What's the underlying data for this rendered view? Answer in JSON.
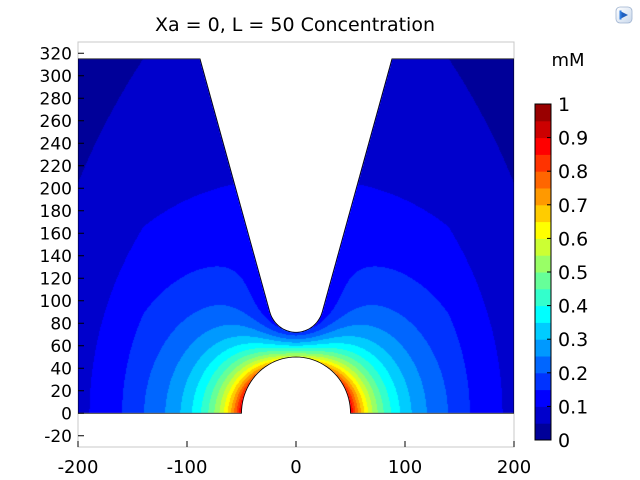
{
  "chart_data": {
    "type": "heatmap",
    "title": "Xa = 0, L = 50 Concentration",
    "xlim": [
      -200,
      200
    ],
    "ylim": [
      -30,
      330
    ],
    "xticks": [
      "-200",
      "-100",
      "0",
      "100",
      "200"
    ],
    "yticks": [
      "320",
      "300",
      "280",
      "260",
      "240",
      "220",
      "200",
      "180",
      "160",
      "140",
      "120",
      "100",
      "80",
      "60",
      "40",
      "20",
      "0",
      "-20"
    ],
    "xtick_values": [
      -200,
      -100,
      0,
      100,
      200
    ],
    "ytick_values": [
      320,
      300,
      280,
      260,
      240,
      220,
      200,
      180,
      160,
      140,
      120,
      100,
      80,
      60,
      40,
      20,
      0,
      -20
    ],
    "colorbar": {
      "unit": "mM",
      "ticks": [
        "1",
        "0.9",
        "0.8",
        "0.7",
        "0.6",
        "0.5",
        "0.4",
        "0.3",
        "0.2",
        "0.1",
        "0"
      ],
      "tick_values": [
        1,
        0.9,
        0.8,
        0.7,
        0.6,
        0.5,
        0.4,
        0.3,
        0.2,
        0.1,
        0
      ],
      "range": [
        0,
        1
      ],
      "levels": 20,
      "colormap": "jet"
    },
    "domain": {
      "x_range": [
        -200,
        200
      ],
      "y_range": [
        0,
        315
      ],
      "electrode_radius": 50,
      "tip_center": [
        0,
        97
      ],
      "tip_radius": 25,
      "tip_top_halfwidth": 88
    }
  },
  "toolbar": {
    "icon": "comsol-logo-icon"
  }
}
